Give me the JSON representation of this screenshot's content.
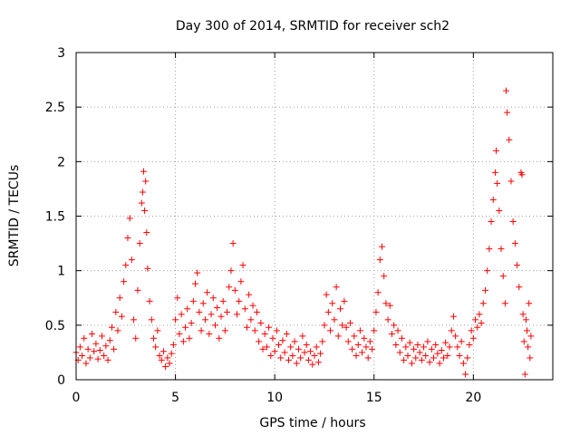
{
  "colors": {
    "series": "#ff0000",
    "axis": "#000000",
    "grid": "#a0a0a0",
    "background": "#ffffff"
  },
  "chart_data": {
    "type": "scatter",
    "marker": "plus",
    "title": "Day 300 of 2014, SRMTID for receiver sch2",
    "xlabel": "GPS time / hours",
    "ylabel": "SRMTID / TECUs",
    "xlim": [
      0,
      24
    ],
    "ylim": [
      0,
      3
    ],
    "xticks": [
      0,
      5,
      10,
      15,
      20
    ],
    "yticks": [
      0,
      0.5,
      1,
      1.5,
      2,
      2.5,
      3
    ],
    "grid": true,
    "legend": "none",
    "series": [
      {
        "name": "sch2",
        "points": [
          [
            0.0,
            0.25
          ],
          [
            0.1,
            0.18
          ],
          [
            0.2,
            0.3
          ],
          [
            0.3,
            0.22
          ],
          [
            0.4,
            0.38
          ],
          [
            0.5,
            0.15
          ],
          [
            0.6,
            0.28
          ],
          [
            0.7,
            0.2
          ],
          [
            0.8,
            0.42
          ],
          [
            0.9,
            0.26
          ],
          [
            1.0,
            0.33
          ],
          [
            1.1,
            0.19
          ],
          [
            1.2,
            0.27
          ],
          [
            1.3,
            0.4
          ],
          [
            1.4,
            0.22
          ],
          [
            1.5,
            0.31
          ],
          [
            1.6,
            0.18
          ],
          [
            1.7,
            0.36
          ],
          [
            1.8,
            0.48
          ],
          [
            1.9,
            0.28
          ],
          [
            2.0,
            0.62
          ],
          [
            2.1,
            0.45
          ],
          [
            2.2,
            0.75
          ],
          [
            2.3,
            0.58
          ],
          [
            2.4,
            0.9
          ],
          [
            2.5,
            1.05
          ],
          [
            2.6,
            1.3
          ],
          [
            2.7,
            1.48
          ],
          [
            2.8,
            1.1
          ],
          [
            2.9,
            0.55
          ],
          [
            3.0,
            0.38
          ],
          [
            3.1,
            0.82
          ],
          [
            3.2,
            1.25
          ],
          [
            3.3,
            1.62
          ],
          [
            3.35,
            1.72
          ],
          [
            3.4,
            1.91
          ],
          [
            3.45,
            1.55
          ],
          [
            3.5,
            1.82
          ],
          [
            3.55,
            1.35
          ],
          [
            3.6,
            1.02
          ],
          [
            3.7,
            0.72
          ],
          [
            3.8,
            0.55
          ],
          [
            3.9,
            0.38
          ],
          [
            4.0,
            0.3
          ],
          [
            4.1,
            0.45
          ],
          [
            4.2,
            0.22
          ],
          [
            4.3,
            0.18
          ],
          [
            4.4,
            0.26
          ],
          [
            4.5,
            0.12
          ],
          [
            4.6,
            0.2
          ],
          [
            4.7,
            0.15
          ],
          [
            4.8,
            0.24
          ],
          [
            4.9,
            0.32
          ],
          [
            5.0,
            0.55
          ],
          [
            5.1,
            0.75
          ],
          [
            5.2,
            0.42
          ],
          [
            5.3,
            0.6
          ],
          [
            5.4,
            0.35
          ],
          [
            5.5,
            0.48
          ],
          [
            5.6,
            0.65
          ],
          [
            5.7,
            0.38
          ],
          [
            5.8,
            0.52
          ],
          [
            5.9,
            0.72
          ],
          [
            6.0,
            0.88
          ],
          [
            6.1,
            0.98
          ],
          [
            6.2,
            0.62
          ],
          [
            6.3,
            0.45
          ],
          [
            6.4,
            0.7
          ],
          [
            6.5,
            0.55
          ],
          [
            6.6,
            0.8
          ],
          [
            6.7,
            0.42
          ],
          [
            6.8,
            0.6
          ],
          [
            6.9,
            0.75
          ],
          [
            7.0,
            0.5
          ],
          [
            7.1,
            0.66
          ],
          [
            7.2,
            0.38
          ],
          [
            7.3,
            0.58
          ],
          [
            7.4,
            0.72
          ],
          [
            7.5,
            0.45
          ],
          [
            7.6,
            0.62
          ],
          [
            7.7,
            0.85
          ],
          [
            7.8,
            1.0
          ],
          [
            7.9,
            1.25
          ],
          [
            8.0,
            0.82
          ],
          [
            8.1,
            0.6
          ],
          [
            8.2,
            0.72
          ],
          [
            8.3,
            0.9
          ],
          [
            8.4,
            1.05
          ],
          [
            8.5,
            0.65
          ],
          [
            8.6,
            0.48
          ],
          [
            8.7,
            0.78
          ],
          [
            8.8,
            0.55
          ],
          [
            8.9,
            0.68
          ],
          [
            9.0,
            0.45
          ],
          [
            9.1,
            0.62
          ],
          [
            9.2,
            0.35
          ],
          [
            9.3,
            0.52
          ],
          [
            9.4,
            0.28
          ],
          [
            9.5,
            0.42
          ],
          [
            9.6,
            0.3
          ],
          [
            9.7,
            0.48
          ],
          [
            9.8,
            0.22
          ],
          [
            9.9,
            0.38
          ],
          [
            10.0,
            0.26
          ],
          [
            10.1,
            0.45
          ],
          [
            10.2,
            0.32
          ],
          [
            10.3,
            0.2
          ],
          [
            10.4,
            0.36
          ],
          [
            10.5,
            0.25
          ],
          [
            10.6,
            0.42
          ],
          [
            10.7,
            0.18
          ],
          [
            10.8,
            0.3
          ],
          [
            10.9,
            0.22
          ],
          [
            11.0,
            0.35
          ],
          [
            11.1,
            0.15
          ],
          [
            11.2,
            0.28
          ],
          [
            11.3,
            0.2
          ],
          [
            11.4,
            0.4
          ],
          [
            11.5,
            0.25
          ],
          [
            11.6,
            0.32
          ],
          [
            11.7,
            0.18
          ],
          [
            11.8,
            0.26
          ],
          [
            11.9,
            0.14
          ],
          [
            12.0,
            0.22
          ],
          [
            12.1,
            0.3
          ],
          [
            12.2,
            0.16
          ],
          [
            12.3,
            0.24
          ],
          [
            12.4,
            0.35
          ],
          [
            12.5,
            0.5
          ],
          [
            12.6,
            0.78
          ],
          [
            12.7,
            0.62
          ],
          [
            12.8,
            0.45
          ],
          [
            12.9,
            0.7
          ],
          [
            13.0,
            0.55
          ],
          [
            13.1,
            0.85
          ],
          [
            13.2,
            0.4
          ],
          [
            13.3,
            0.65
          ],
          [
            13.4,
            0.5
          ],
          [
            13.5,
            0.72
          ],
          [
            13.6,
            0.48
          ],
          [
            13.7,
            0.35
          ],
          [
            13.8,
            0.52
          ],
          [
            13.9,
            0.28
          ],
          [
            14.0,
            0.4
          ],
          [
            14.1,
            0.22
          ],
          [
            14.2,
            0.32
          ],
          [
            14.3,
            0.45
          ],
          [
            14.4,
            0.25
          ],
          [
            14.5,
            0.38
          ],
          [
            14.6,
            0.3
          ],
          [
            14.7,
            0.2
          ],
          [
            14.8,
            0.35
          ],
          [
            14.9,
            0.28
          ],
          [
            15.0,
            0.45
          ],
          [
            15.1,
            0.62
          ],
          [
            15.2,
            0.8
          ],
          [
            15.3,
            1.1
          ],
          [
            15.4,
            1.22
          ],
          [
            15.5,
            0.95
          ],
          [
            15.6,
            0.7
          ],
          [
            15.7,
            0.55
          ],
          [
            15.8,
            0.68
          ],
          [
            15.9,
            0.42
          ],
          [
            16.0,
            0.5
          ],
          [
            16.1,
            0.32
          ],
          [
            16.2,
            0.45
          ],
          [
            16.3,
            0.25
          ],
          [
            16.4,
            0.38
          ],
          [
            16.5,
            0.18
          ],
          [
            16.6,
            0.3
          ],
          [
            16.7,
            0.22
          ],
          [
            16.8,
            0.34
          ],
          [
            16.9,
            0.15
          ],
          [
            17.0,
            0.28
          ],
          [
            17.1,
            0.2
          ],
          [
            17.2,
            0.32
          ],
          [
            17.3,
            0.25
          ],
          [
            17.4,
            0.18
          ],
          [
            17.5,
            0.3
          ],
          [
            17.6,
            0.22
          ],
          [
            17.7,
            0.35
          ],
          [
            17.8,
            0.16
          ],
          [
            17.9,
            0.28
          ],
          [
            18.0,
            0.2
          ],
          [
            18.1,
            0.32
          ],
          [
            18.2,
            0.24
          ],
          [
            18.3,
            0.15
          ],
          [
            18.4,
            0.27
          ],
          [
            18.5,
            0.2
          ],
          [
            18.6,
            0.34
          ],
          [
            18.7,
            0.22
          ],
          [
            18.8,
            0.3
          ],
          [
            18.9,
            0.45
          ],
          [
            19.0,
            0.58
          ],
          [
            19.1,
            0.4
          ],
          [
            19.2,
            0.3
          ],
          [
            19.3,
            0.22
          ],
          [
            19.4,
            0.35
          ],
          [
            19.5,
            0.15
          ],
          [
            19.6,
            0.05
          ],
          [
            19.7,
            0.2
          ],
          [
            19.8,
            0.32
          ],
          [
            19.9,
            0.45
          ],
          [
            20.0,
            0.38
          ],
          [
            20.1,
            0.55
          ],
          [
            20.2,
            0.48
          ],
          [
            20.3,
            0.6
          ],
          [
            20.4,
            0.52
          ],
          [
            20.5,
            0.7
          ],
          [
            20.6,
            0.82
          ],
          [
            20.7,
            1.0
          ],
          [
            20.8,
            1.2
          ],
          [
            20.9,
            1.45
          ],
          [
            21.0,
            1.65
          ],
          [
            21.1,
            1.9
          ],
          [
            21.15,
            2.1
          ],
          [
            21.2,
            1.8
          ],
          [
            21.3,
            1.55
          ],
          [
            21.4,
            1.2
          ],
          [
            21.5,
            0.95
          ],
          [
            21.6,
            0.7
          ],
          [
            21.65,
            2.65
          ],
          [
            21.7,
            2.45
          ],
          [
            21.8,
            2.2
          ],
          [
            21.9,
            1.82
          ],
          [
            22.0,
            1.45
          ],
          [
            22.1,
            1.25
          ],
          [
            22.2,
            1.05
          ],
          [
            22.3,
            0.85
          ],
          [
            22.4,
            1.9
          ],
          [
            22.45,
            1.88
          ],
          [
            22.5,
            0.6
          ],
          [
            22.55,
            0.35
          ],
          [
            22.6,
            0.05
          ],
          [
            22.65,
            0.55
          ],
          [
            22.7,
            0.45
          ],
          [
            22.75,
            0.3
          ],
          [
            22.8,
            0.7
          ],
          [
            22.85,
            0.2
          ],
          [
            22.9,
            0.4
          ]
        ]
      }
    ]
  }
}
